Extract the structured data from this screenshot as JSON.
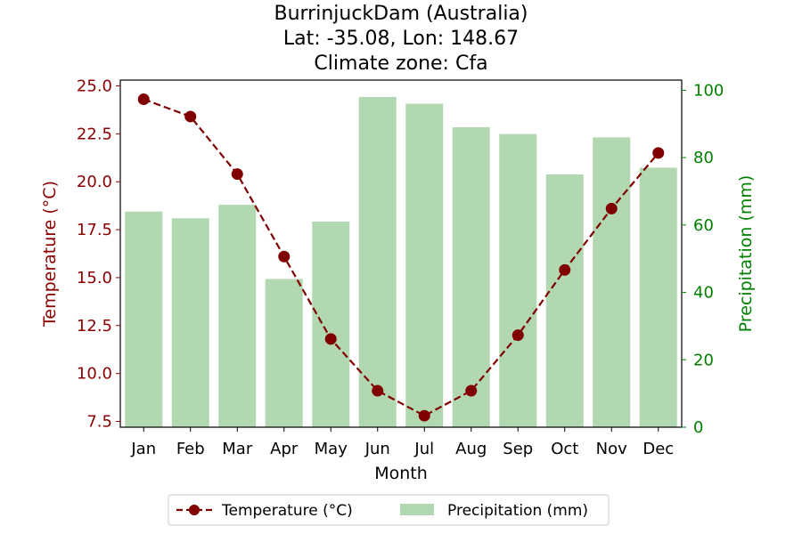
{
  "chart_data": {
    "type": "bar+line",
    "title_lines": [
      "BurrinjuckDam (Australia)",
      "Lat: -35.08, Lon: 148.67",
      "Climate zone: Cfa"
    ],
    "xlabel": "Month",
    "ylabel_left": "Temperature (°C)",
    "ylabel_right": "Precipitation (mm)",
    "categories": [
      "Jan",
      "Feb",
      "Mar",
      "Apr",
      "May",
      "Jun",
      "Jul",
      "Aug",
      "Sep",
      "Oct",
      "Nov",
      "Dec"
    ],
    "y_left_lim": [
      7.2,
      25.3
    ],
    "y_left_ticks": [
      "7.5",
      "10.0",
      "12.5",
      "15.0",
      "17.5",
      "20.0",
      "22.5",
      "25.0"
    ],
    "y_right_lim": [
      0,
      103
    ],
    "y_right_ticks": [
      "0",
      "20",
      "40",
      "60",
      "80",
      "100"
    ],
    "series": [
      {
        "name": "Temperature (°C)",
        "kind": "line",
        "axis": "left",
        "color": "#800000",
        "values": [
          24.3,
          23.4,
          20.4,
          16.1,
          11.8,
          9.1,
          7.8,
          9.1,
          12.0,
          15.4,
          18.6,
          21.5
        ]
      },
      {
        "name": "Precipitation (mm)",
        "kind": "bar",
        "axis": "right",
        "color": "#b2d8b2",
        "values": [
          64,
          62,
          66,
          44,
          61,
          98,
          96,
          89,
          87,
          75,
          86,
          77
        ]
      }
    ],
    "legend": {
      "position": "bottom-center"
    },
    "grid": false,
    "axis_colors": {
      "left": "#8b0000",
      "right": "#008000"
    }
  }
}
